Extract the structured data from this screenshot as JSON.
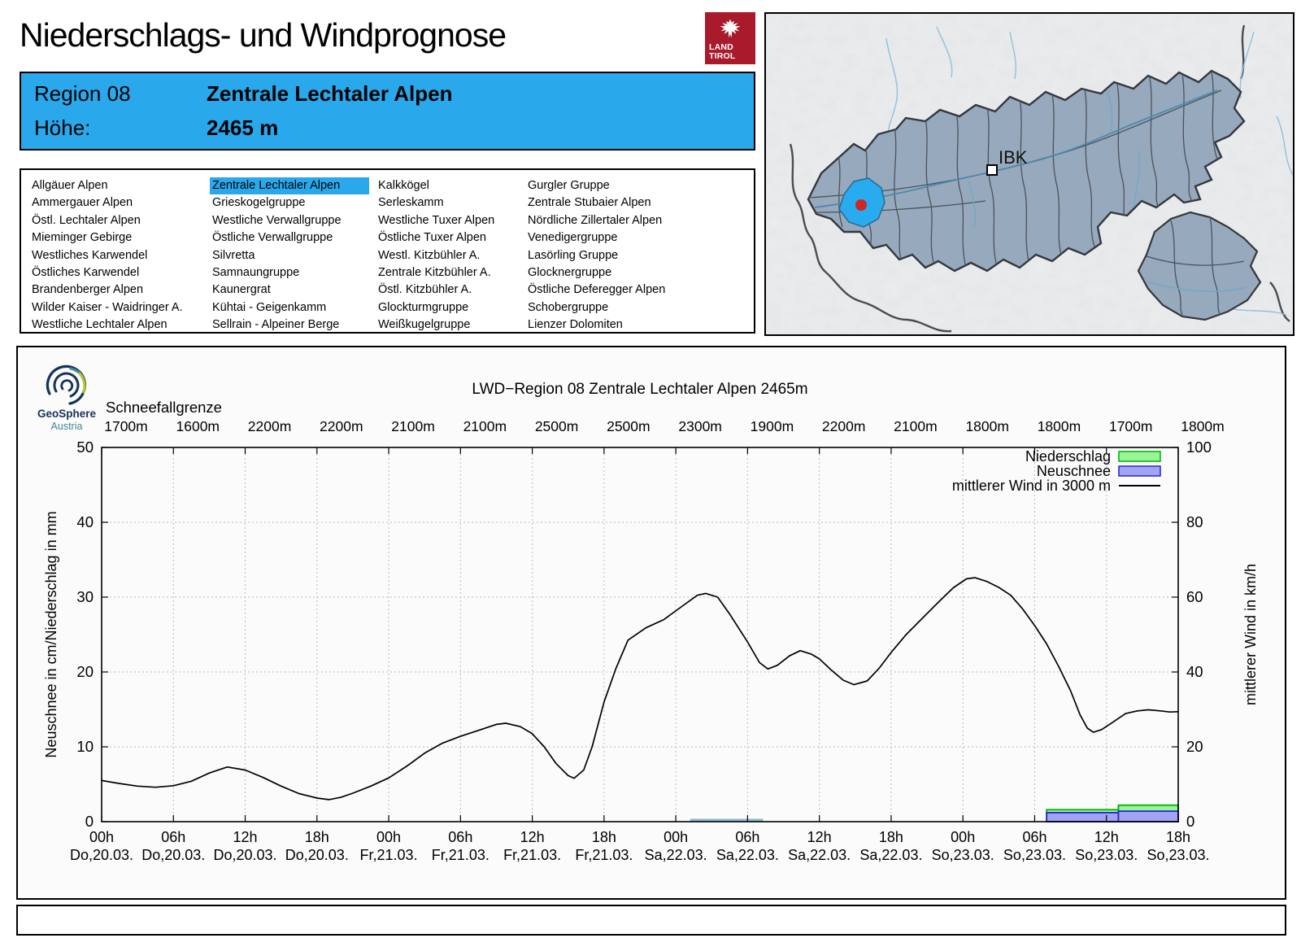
{
  "page": {
    "title": "Niederschlags- und Windprognose"
  },
  "tirol_logo": {
    "line1": "LAND",
    "line2": "TIROL"
  },
  "region_header": {
    "region_label": "Region 08",
    "region_name": "Zentrale Lechtaler Alpen",
    "hoehe_label": "Höhe:",
    "hoehe_value": "2465 m"
  },
  "region_list": {
    "selected": "Zentrale Lechtaler Alpen",
    "columns": [
      [
        "Allgäuer Alpen",
        "Ammergauer Alpen",
        "Östl. Lechtaler Alpen",
        "Mieminger Gebirge",
        "Westliches Karwendel",
        "Östliches Karwendel",
        "Brandenberger Alpen",
        "Wilder Kaiser - Waidringer A.",
        "Westliche Lechtaler Alpen"
      ],
      [
        "Zentrale Lechtaler Alpen",
        "Grieskogelgruppe",
        "Westliche Verwallgruppe",
        "Östliche Verwallgruppe",
        "Silvretta",
        "Samnaungruppe",
        "Kaunergrat",
        "Kühtai - Geigenkamm",
        "Sellrain - Alpeiner Berge"
      ],
      [
        "Kalkkögel",
        "Serleskamm",
        "Westliche Tuxer Alpen",
        "Östliche Tuxer Alpen",
        "Westl. Kitzbühler A.",
        "Zentrale Kitzbühler A.",
        "Östl. Kitzbühler A.",
        "Glockturmgruppe",
        "Weißkugelgruppe"
      ],
      [
        "Gurgler Gruppe",
        "Zentrale Stubaier Alpen",
        "Nördliche Zillertaler Alpen",
        "Venedigergruppe",
        "Lasörling Gruppe",
        "Glocknergruppe",
        "Östliche Deferegger Alpen",
        "Schobergruppe",
        "Lienzer Dolomiten"
      ]
    ]
  },
  "map": {
    "city_label": "IBK",
    "colors": {
      "region_fill": "#96a9bd",
      "selected_fill": "#29abf0",
      "marker_red": "#d02626",
      "border": "#33383d",
      "river": "#77b4d4"
    }
  },
  "geosphere": {
    "line1": "GeoSphere",
    "line2": "Austria"
  },
  "chart_data": {
    "type": "line+bar",
    "title": "LWD−Region 08 Zentrale Lechtaler Alpen 2465m",
    "snowline_label": "Schneefallgrenze",
    "snowline_values": [
      "1700m",
      "1600m",
      "2200m",
      "2200m",
      "2100m",
      "2100m",
      "2500m",
      "2500m",
      "2300m",
      "1900m",
      "2200m",
      "2100m",
      "1800m",
      "1800m",
      "1700m",
      "1800m"
    ],
    "x_hour_labels": [
      "00h",
      "06h",
      "12h",
      "18h",
      "00h",
      "06h",
      "12h",
      "18h",
      "00h",
      "06h",
      "12h",
      "18h",
      "00h",
      "06h",
      "12h",
      "18h"
    ],
    "x_date_labels": [
      "Do,20.03.",
      "Do,20.03.",
      "Do,20.03.",
      "Do,20.03.",
      "Fr,21.03.",
      "Fr,21.03.",
      "Fr,21.03.",
      "Fr,21.03.",
      "Sa,22.03.",
      "Sa,22.03.",
      "Sa,22.03.",
      "Sa,22.03.",
      "So,23.03.",
      "So,23.03.",
      "So,23.03.",
      "So,23.03."
    ],
    "ylabel_left": "Neuschnee in cm/Niederschlag in mm",
    "ylabel_right": "mittlerer Wind in km/h",
    "ylim_left": [
      0,
      50
    ],
    "ylim_right": [
      0,
      100
    ],
    "yticks_left": [
      0,
      10,
      20,
      30,
      40,
      50
    ],
    "yticks_right": [
      0,
      20,
      40,
      60,
      80,
      100
    ],
    "time_axis": {
      "unit": "hours from Do 20.03. 00h",
      "range": [
        0,
        90
      ],
      "tick_step": 6
    },
    "legend": [
      {
        "label": "Niederschlag",
        "swatch": "box",
        "fill": "#98f598",
        "border": "#00b400"
      },
      {
        "label": "Neuschnee",
        "swatch": "box",
        "fill": "#a3a3f5",
        "border": "#2525cd"
      },
      {
        "label": "mittlerer Wind in 3000 m",
        "swatch": "line",
        "color": "#000000"
      }
    ],
    "wind_series": {
      "name": "mittlerer Wind in 3000 m",
      "unit": "km/h",
      "axis": "right",
      "points": [
        [
          0,
          11
        ],
        [
          1.5,
          10.2
        ],
        [
          3,
          9.5
        ],
        [
          4.5,
          9.2
        ],
        [
          6,
          9.6
        ],
        [
          7.5,
          10.8
        ],
        [
          9,
          13
        ],
        [
          10.5,
          14.6
        ],
        [
          12,
          13.8
        ],
        [
          13.5,
          11.8
        ],
        [
          15,
          9.5
        ],
        [
          16.5,
          7.5
        ],
        [
          18,
          6.3
        ],
        [
          19,
          5.9
        ],
        [
          20,
          6.5
        ],
        [
          21,
          7.6
        ],
        [
          22.5,
          9.5
        ],
        [
          24,
          11.7
        ],
        [
          25.5,
          14.8
        ],
        [
          27,
          18.3
        ],
        [
          28.5,
          21
        ],
        [
          30,
          22.8
        ],
        [
          31.5,
          24.4
        ],
        [
          33,
          26
        ],
        [
          33.8,
          26.3
        ],
        [
          35,
          25.4
        ],
        [
          36,
          23.5
        ],
        [
          37,
          20
        ],
        [
          38,
          15.5
        ],
        [
          39,
          12.3
        ],
        [
          39.5,
          11.6
        ],
        [
          40.3,
          13.8
        ],
        [
          41,
          20
        ],
        [
          42,
          32
        ],
        [
          43,
          41
        ],
        [
          44,
          48.5
        ],
        [
          45.5,
          51.8
        ],
        [
          47,
          54
        ],
        [
          48.5,
          57.5
        ],
        [
          49.8,
          60.5
        ],
        [
          50.5,
          61
        ],
        [
          51.5,
          60
        ],
        [
          52.5,
          55.5
        ],
        [
          54,
          48
        ],
        [
          55,
          42.5
        ],
        [
          55.7,
          40.8
        ],
        [
          56.5,
          41.8
        ],
        [
          57.5,
          44.3
        ],
        [
          58.4,
          45.7
        ],
        [
          59.3,
          44.8
        ],
        [
          60,
          43.5
        ],
        [
          61,
          40.5
        ],
        [
          62,
          37.8
        ],
        [
          62.9,
          36.6
        ],
        [
          64,
          37.6
        ],
        [
          65,
          41
        ],
        [
          66,
          45.2
        ],
        [
          67.2,
          49.8
        ],
        [
          68.5,
          54
        ],
        [
          70,
          58.8
        ],
        [
          71.2,
          62.5
        ],
        [
          72.3,
          64.9
        ],
        [
          73,
          65.2
        ],
        [
          74,
          64.2
        ],
        [
          75,
          62.6
        ],
        [
          76,
          60.5
        ],
        [
          77,
          56.8
        ],
        [
          78,
          52.4
        ],
        [
          79,
          47.5
        ],
        [
          80,
          41.5
        ],
        [
          81,
          35
        ],
        [
          81.8,
          28.5
        ],
        [
          82.4,
          25
        ],
        [
          82.9,
          23.9
        ],
        [
          83.6,
          24.6
        ],
        [
          84.5,
          26.5
        ],
        [
          85.6,
          28.9
        ],
        [
          86.6,
          29.6
        ],
        [
          87.5,
          29.9
        ],
        [
          88.5,
          29.6
        ],
        [
          89.3,
          29.3
        ],
        [
          90,
          29.4
        ]
      ]
    },
    "niederschlag_bars": {
      "unit": "mm",
      "axis": "left",
      "segments": [
        {
          "from": 79,
          "to": 85,
          "value": 1.6
        },
        {
          "from": 85,
          "to": 90,
          "value": 2.2
        }
      ]
    },
    "neuschnee_bars": {
      "unit": "cm",
      "axis": "left",
      "segments": [
        {
          "from": 79,
          "to": 85,
          "value": 1.2
        },
        {
          "from": 85,
          "to": 90,
          "value": 1.4
        }
      ]
    },
    "trace_segment": {
      "from": 49.2,
      "to": 55.3,
      "value": 0,
      "color": "#8ab8cf"
    },
    "grid": true,
    "legend_position": "top-right"
  }
}
